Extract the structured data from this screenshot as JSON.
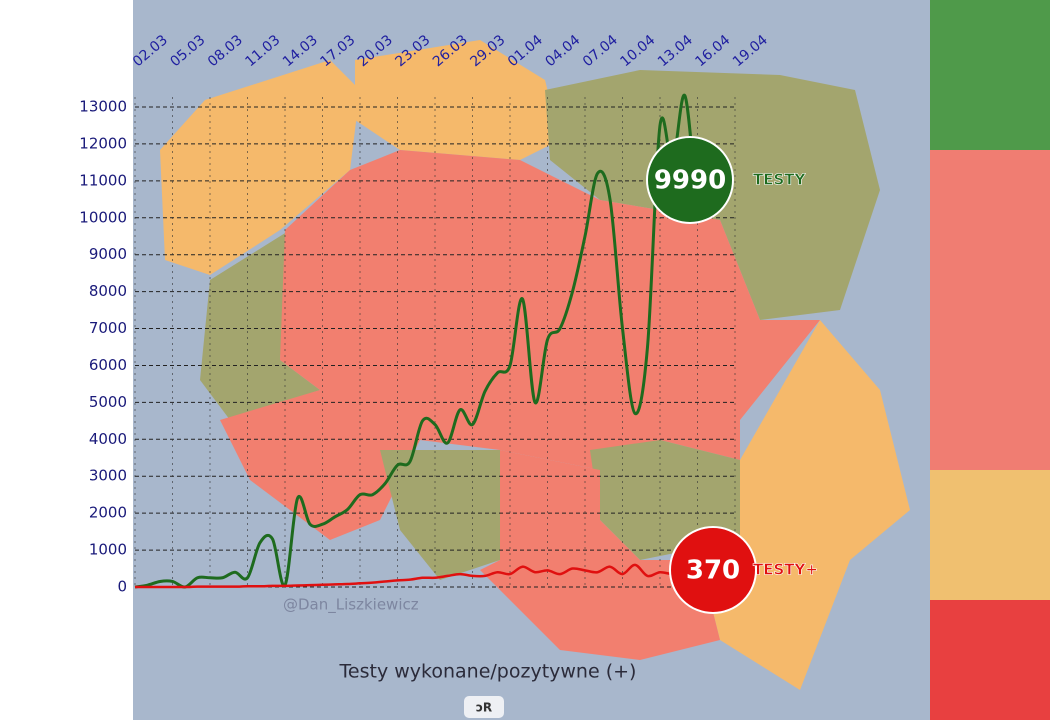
{
  "chart_data": {
    "type": "line",
    "x_label": "Testy wykonane/pozytywne (+)",
    "watermark": "@Dan_Liszkiewicz",
    "button": "ↄR",
    "categories": [
      "02.03",
      null,
      null,
      "05.03",
      null,
      null,
      "08.03",
      null,
      null,
      "11.03",
      null,
      null,
      "14.03",
      null,
      null,
      "17.03",
      null,
      null,
      "20.03",
      null,
      null,
      "23.03",
      null,
      null,
      "26.03",
      null,
      null,
      "29.03",
      null,
      null,
      "01.04",
      null,
      null,
      "04.04",
      null,
      null,
      "07.04",
      null,
      null,
      "10.04",
      null,
      null,
      "13.04",
      null,
      null,
      "16.04",
      null,
      null,
      "19.04"
    ],
    "series": [
      {
        "name": "TESTY",
        "color": "#1e6b1e",
        "values": [
          0,
          50,
          150,
          150,
          0,
          250,
          250,
          250,
          400,
          250,
          1200,
          1300,
          50,
          2400,
          1700,
          1700,
          1900,
          2100,
          2500,
          2500,
          2800,
          3300,
          3400,
          4500,
          4400,
          3900,
          4800,
          4400,
          5300,
          5800,
          6000,
          7800,
          5000,
          6700,
          7000,
          8000,
          9500,
          11200,
          10500,
          7000,
          4700,
          6500,
          12500,
          11500,
          13300,
          9990,
          null,
          null,
          null
        ]
      },
      {
        "name": "TESTY+",
        "color": "#e01010",
        "values": [
          0,
          0,
          0,
          0,
          0,
          10,
          10,
          10,
          10,
          20,
          20,
          30,
          30,
          40,
          50,
          60,
          70,
          80,
          100,
          120,
          150,
          180,
          200,
          250,
          250,
          300,
          350,
          300,
          300,
          400,
          350,
          550,
          400,
          450,
          350,
          500,
          450,
          400,
          550,
          350,
          600,
          300,
          400,
          350,
          400,
          370,
          null,
          null,
          null
        ]
      }
    ],
    "ylim": [
      0,
      13000
    ],
    "yticks": [
      0,
      1000,
      2000,
      3000,
      4000,
      5000,
      6000,
      7000,
      8000,
      9000,
      10000,
      11000,
      12000,
      13000
    ],
    "grid": true
  }
}
